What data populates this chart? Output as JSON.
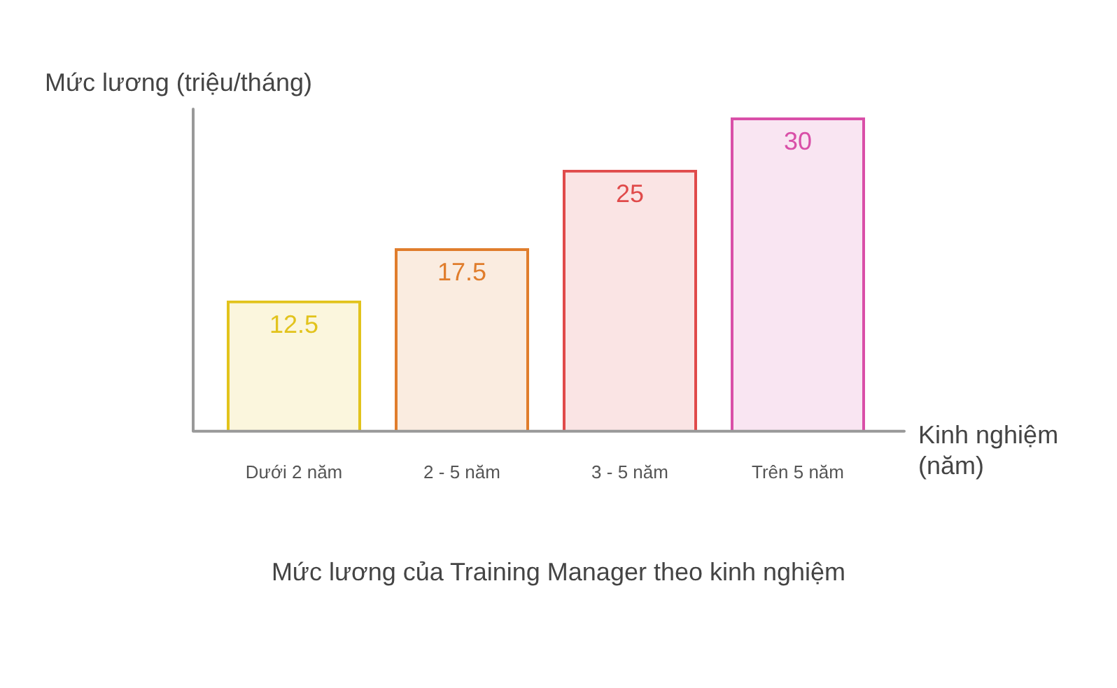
{
  "chart_data": {
    "type": "bar",
    "title": "Mức lương của Training Manager theo kinh nghiệm",
    "xlabel": "Kinh nghiệm (năm)",
    "ylabel": "Mức lương (triệu/tháng)",
    "categories": [
      "Dưới 2 năm",
      "2 - 5 năm",
      "3 - 5 năm",
      "Trên 5 năm"
    ],
    "values": [
      12.5,
      17.5,
      25,
      30
    ],
    "colors": [
      "#e2c31c",
      "#e07d2c",
      "#e04a4a",
      "#d94fa8"
    ],
    "ylim": [
      0,
      30
    ],
    "data_labels": true,
    "grid": false,
    "legend": false
  }
}
